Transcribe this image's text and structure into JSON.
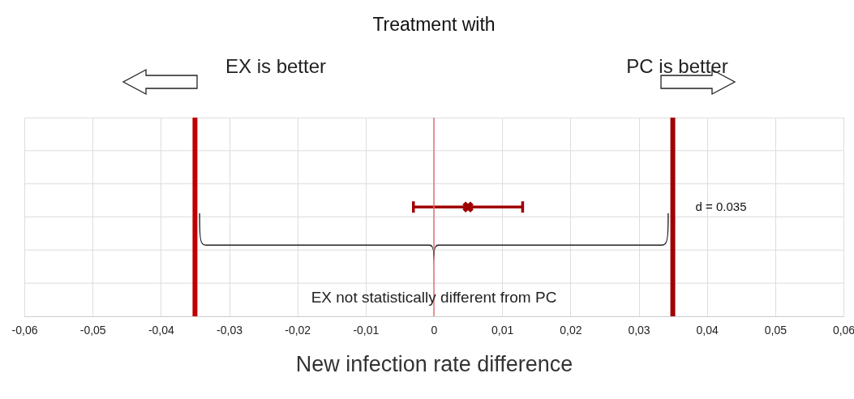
{
  "chart_data": {
    "type": "scatter",
    "orientation": "horizontal",
    "title": "Treatment with",
    "xlabel": "New infection rate difference",
    "categories": [
      null
    ],
    "series": [
      {
        "color": "#a00000",
        "values": [
          0.005
        ],
        "errors": [
          [
            -0.003,
            0.013
          ]
        ]
      }
    ],
    "marker": "cross",
    "xlim": [
      -0.06,
      0.06
    ],
    "xticks": [
      {
        "value": -0.06,
        "label": "-0,06"
      },
      {
        "value": -0.05,
        "label": "-0,05"
      },
      {
        "value": -0.04,
        "label": "-0,04"
      },
      {
        "value": -0.03,
        "label": "-0,03"
      },
      {
        "value": -0.02,
        "label": "-0,02"
      },
      {
        "value": -0.01,
        "label": "-0,01"
      },
      {
        "value": 0,
        "label": "0"
      },
      {
        "value": 0.01,
        "label": "0,01"
      },
      {
        "value": 0.02,
        "label": "0,02"
      },
      {
        "value": 0.03,
        "label": "0,03"
      },
      {
        "value": 0.04,
        "label": "0,04"
      },
      {
        "value": 0.05,
        "label": "0,05"
      },
      {
        "value": 0.06,
        "label": "0,06"
      }
    ],
    "tick_labels": "x",
    "grid": true,
    "ref_lines": [
      {
        "axis": "x",
        "value": 0,
        "color": "#e87070"
      },
      {
        "axis": "x",
        "value": -0.035,
        "color": "#c00000"
      },
      {
        "axis": "x",
        "value": 0.035,
        "color": "#a00000",
        "label": "d = 0.035"
      }
    ],
    "annotations": [
      "EX is better",
      "PC is better",
      "EX not statistically different from PC"
    ]
  }
}
